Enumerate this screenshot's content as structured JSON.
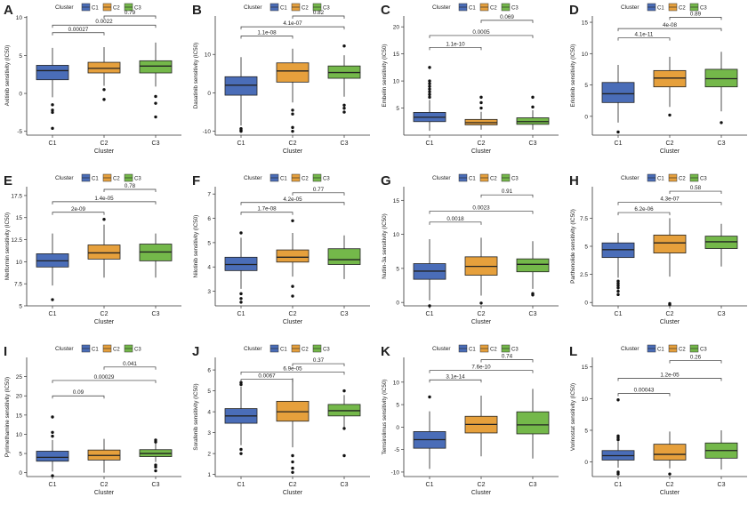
{
  "legend_common": {
    "title": "Cluster",
    "items": [
      "C1",
      "C2",
      "C3"
    ]
  },
  "colors": {
    "C1": "#4a6db8",
    "C2": "#e6a03c",
    "C3": "#74b84a",
    "axis": "#333333",
    "text": "#222222"
  },
  "chart_data": [
    {
      "type": "box",
      "panel": "A",
      "ylabel": "Axitinib sensitivity (IC50)",
      "xlabel": "Cluster",
      "categories": [
        "C1",
        "C2",
        "C3"
      ],
      "ylim": [
        -5.5,
        10.2
      ],
      "yticks": [
        -5,
        0,
        5,
        10
      ],
      "boxes": [
        {
          "q1": 1.8,
          "median": 3.0,
          "q3": 3.7,
          "min": -0.5,
          "max": 6.0,
          "outliers": [
            -1.5,
            -2.2,
            -2.5,
            -4.6
          ]
        },
        {
          "q1": 2.7,
          "median": 3.3,
          "q3": 4.1,
          "min": 1.0,
          "max": 6.1,
          "outliers": [
            0.5,
            -0.8
          ]
        },
        {
          "q1": 2.7,
          "median": 3.6,
          "q3": 4.3,
          "min": 0.9,
          "max": 6.7,
          "outliers": [
            -0.4,
            -1.3,
            -3.1
          ]
        }
      ],
      "comparisons": [
        {
          "pair": [
            "C1",
            "C2"
          ],
          "p": "0.00027",
          "y": 8.0
        },
        {
          "pair": [
            "C1",
            "C3"
          ],
          "p": "0.0022",
          "y": 9.0
        },
        {
          "pair": [
            "C2",
            "C3"
          ],
          "p": "0.79",
          "y": 10.2
        }
      ]
    },
    {
      "type": "box",
      "panel": "B",
      "ylabel": "Dasatinib sensitivity (IC50)",
      "xlabel": "Cluster",
      "categories": [
        "C1",
        "C2",
        "C3"
      ],
      "ylim": [
        -11,
        20
      ],
      "yticks": [
        -10,
        0,
        10
      ],
      "boxes": [
        {
          "q1": -0.6,
          "median": 2.0,
          "q3": 4.2,
          "min": -8.5,
          "max": 9.3,
          "outliers": [
            -9.3,
            -9.7,
            -10.0
          ]
        },
        {
          "q1": 2.8,
          "median": 5.7,
          "q3": 7.8,
          "min": -2.5,
          "max": 11.5,
          "outliers": [
            -4.5,
            -5.5,
            -9.0,
            -10.0
          ]
        },
        {
          "q1": 3.8,
          "median": 5.3,
          "q3": 7.0,
          "min": -1.0,
          "max": 9.8,
          "outliers": [
            12.2,
            -3.2,
            -4.0,
            -5.0
          ]
        }
      ],
      "comparisons": [
        {
          "pair": [
            "C1",
            "C2"
          ],
          "p": "1.1e-08",
          "y": 14.8
        },
        {
          "pair": [
            "C1",
            "C3"
          ],
          "p": "4.1e-07",
          "y": 17.2
        },
        {
          "pair": [
            "C2",
            "C3"
          ],
          "p": "0.82",
          "y": 20.0
        }
      ]
    },
    {
      "type": "box",
      "panel": "C",
      "ylabel": "Embelin sensitivity (IC50)",
      "xlabel": "Cluster",
      "categories": [
        "C1",
        "C2",
        "C3"
      ],
      "ylim": [
        0,
        22
      ],
      "yticks": [
        5,
        10,
        15,
        20
      ],
      "boxes": [
        {
          "q1": 2.5,
          "median": 3.3,
          "q3": 4.2,
          "min": 0.8,
          "max": 6.5,
          "outliers": [
            7.0,
            7.5,
            8.0,
            8.5,
            9.0,
            9.5,
            10.0,
            12.5
          ]
        },
        {
          "q1": 1.9,
          "median": 2.3,
          "q3": 2.9,
          "min": 1.0,
          "max": 4.3,
          "outliers": [
            5.0,
            6.0,
            7.0
          ]
        },
        {
          "q1": 2.0,
          "median": 2.5,
          "q3": 3.2,
          "min": 1.0,
          "max": 4.6,
          "outliers": [
            5.2,
            7.0
          ]
        }
      ],
      "comparisons": [
        {
          "pair": [
            "C1",
            "C2"
          ],
          "p": "1.1e-10",
          "y": 16.2
        },
        {
          "pair": [
            "C1",
            "C3"
          ],
          "p": "0.0005",
          "y": 18.4
        },
        {
          "pair": [
            "C2",
            "C3"
          ],
          "p": "0.069",
          "y": 21.2
        }
      ]
    },
    {
      "type": "box",
      "panel": "D",
      "ylabel": "Erlotinib sensitivity (IC50)",
      "xlabel": "Cluster",
      "categories": [
        "C1",
        "C2",
        "C3"
      ],
      "ylim": [
        -3,
        16
      ],
      "yticks": [
        0,
        5,
        10,
        15
      ],
      "boxes": [
        {
          "q1": 2.2,
          "median": 3.6,
          "q3": 5.4,
          "min": -1.0,
          "max": 8.2,
          "outliers": [
            -2.5
          ]
        },
        {
          "q1": 4.7,
          "median": 6.1,
          "q3": 7.3,
          "min": 1.5,
          "max": 9.5,
          "outliers": [
            0.2
          ]
        },
        {
          "q1": 4.7,
          "median": 6.0,
          "q3": 7.5,
          "min": 0.8,
          "max": 10.3,
          "outliers": [
            -1.0
          ]
        }
      ],
      "comparisons": [
        {
          "pair": [
            "C1",
            "C2"
          ],
          "p": "4.1e-11",
          "y": 12.5
        },
        {
          "pair": [
            "C1",
            "C3"
          ],
          "p": "4e-08",
          "y": 14.0
        },
        {
          "pair": [
            "C2",
            "C3"
          ],
          "p": "0.89",
          "y": 15.8
        }
      ]
    },
    {
      "type": "box",
      "panel": "E",
      "ylabel": "Metformin sensitivity (IC50)",
      "xlabel": "Cluster",
      "categories": [
        "C1",
        "C2",
        "C3"
      ],
      "ylim": [
        5,
        18.5
      ],
      "yticks": [
        5.0,
        7.5,
        10.0,
        12.5,
        15.0,
        17.5
      ],
      "boxes": [
        {
          "q1": 9.4,
          "median": 10.1,
          "q3": 10.9,
          "min": 7.3,
          "max": 13.2,
          "outliers": [
            5.7
          ]
        },
        {
          "q1": 10.3,
          "median": 11.0,
          "q3": 11.9,
          "min": 8.2,
          "max": 14.2,
          "outliers": [
            14.8
          ]
        },
        {
          "q1": 10.1,
          "median": 11.1,
          "q3": 12.0,
          "min": 8.2,
          "max": 13.2,
          "outliers": []
        }
      ],
      "comparisons": [
        {
          "pair": [
            "C1",
            "C2"
          ],
          "p": "2e-09",
          "y": 15.6
        },
        {
          "pair": [
            "C1",
            "C3"
          ],
          "p": "1.4e-05",
          "y": 16.8
        },
        {
          "pair": [
            "C2",
            "C3"
          ],
          "p": "0.78",
          "y": 18.2
        }
      ]
    },
    {
      "type": "box",
      "panel": "F",
      "ylabel": "Nilotinib sensitivity (IC50)",
      "xlabel": "Cluster",
      "categories": [
        "C1",
        "C2",
        "C3"
      ],
      "ylim": [
        2.4,
        7.3
      ],
      "yticks": [
        3,
        4,
        5,
        6,
        7
      ],
      "boxes": [
        {
          "q1": 3.85,
          "median": 4.1,
          "q3": 4.4,
          "min": 3.1,
          "max": 5.2,
          "outliers": [
            5.4,
            2.9,
            2.7,
            2.55
          ]
        },
        {
          "q1": 4.2,
          "median": 4.4,
          "q3": 4.7,
          "min": 3.6,
          "max": 5.4,
          "outliers": [
            5.9,
            3.2,
            2.8
          ]
        },
        {
          "q1": 4.1,
          "median": 4.3,
          "q3": 4.75,
          "min": 3.5,
          "max": 5.3,
          "outliers": []
        }
      ],
      "comparisons": [
        {
          "pair": [
            "C1",
            "C2"
          ],
          "p": "1.7e-08",
          "y": 6.25
        },
        {
          "pair": [
            "C1",
            "C3"
          ],
          "p": "4.2e-05",
          "y": 6.65
        },
        {
          "pair": [
            "C2",
            "C3"
          ],
          "p": "0.77",
          "y": 7.05
        }
      ]
    },
    {
      "type": "box",
      "panel": "G",
      "ylabel": "Nutlin-3a sensitivity (IC50)",
      "xlabel": "Cluster",
      "categories": [
        "C1",
        "C2",
        "C3"
      ],
      "ylim": [
        -0.5,
        17
      ],
      "yticks": [
        0,
        5,
        10,
        15
      ],
      "boxes": [
        {
          "q1": 3.4,
          "median": 4.6,
          "q3": 5.7,
          "min": 0.3,
          "max": 9.3,
          "outliers": [
            -0.5
          ]
        },
        {
          "q1": 4.0,
          "median": 5.3,
          "q3": 6.7,
          "min": 1.0,
          "max": 9.5,
          "outliers": [
            -0.1
          ]
        },
        {
          "q1": 4.5,
          "median": 5.6,
          "q3": 6.4,
          "min": 2.0,
          "max": 9.0,
          "outliers": [
            1.3,
            1.1
          ]
        }
      ],
      "comparisons": [
        {
          "pair": [
            "C1",
            "C2"
          ],
          "p": "0.0018",
          "y": 11.8
        },
        {
          "pair": [
            "C1",
            "C3"
          ],
          "p": "0.0023",
          "y": 13.4
        },
        {
          "pair": [
            "C2",
            "C3"
          ],
          "p": "0.91",
          "y": 15.8
        }
      ]
    },
    {
      "type": "box",
      "panel": "H",
      "ylabel": "Parthenolide sensitivity (IC50)",
      "xlabel": "Cluster",
      "categories": [
        "C1",
        "C2",
        "C3"
      ],
      "ylim": [
        -0.3,
        10.3
      ],
      "yticks": [
        0.0,
        2.5,
        5.0,
        7.5
      ],
      "boxes": [
        {
          "q1": 4.0,
          "median": 4.7,
          "q3": 5.3,
          "min": 2.2,
          "max": 6.2,
          "outliers": [
            1.9,
            1.7,
            1.5,
            1.3,
            1.0,
            0.7
          ]
        },
        {
          "q1": 4.4,
          "median": 5.3,
          "q3": 6.0,
          "min": 2.3,
          "max": 7.5,
          "outliers": [
            -0.1,
            -0.2
          ]
        },
        {
          "q1": 4.8,
          "median": 5.4,
          "q3": 5.9,
          "min": 3.2,
          "max": 7.0,
          "outliers": []
        }
      ],
      "comparisons": [
        {
          "pair": [
            "C1",
            "C2"
          ],
          "p": "6.2e-06",
          "y": 8.0
        },
        {
          "pair": [
            "C1",
            "C3"
          ],
          "p": "4.3e-07",
          "y": 8.9
        },
        {
          "pair": [
            "C2",
            "C3"
          ],
          "p": "0.58",
          "y": 9.9
        }
      ]
    },
    {
      "type": "box",
      "panel": "I",
      "ylabel": "Pyrimethamine sensitivity (IC50)",
      "xlabel": "Cluster",
      "categories": [
        "C1",
        "C2",
        "C3"
      ],
      "ylim": [
        -1,
        30
      ],
      "yticks": [
        0,
        5,
        10,
        15,
        20,
        25
      ],
      "boxes": [
        {
          "q1": 3.0,
          "median": 4.0,
          "q3": 5.6,
          "min": 0.3,
          "max": 8.5,
          "outliers": [
            10.5,
            9.5,
            14.5,
            -0.8
          ]
        },
        {
          "q1": 3.3,
          "median": 4.5,
          "q3": 5.9,
          "min": 0.0,
          "max": 8.8,
          "outliers": []
        },
        {
          "q1": 4.2,
          "median": 5.0,
          "q3": 6.0,
          "min": 2.8,
          "max": 7.7,
          "outliers": [
            8.0,
            8.5,
            2.0,
            1.5,
            0.5
          ]
        }
      ],
      "comparisons": [
        {
          "pair": [
            "C1",
            "C2"
          ],
          "p": "0.09",
          "y": 20.0
        },
        {
          "pair": [
            "C1",
            "C3"
          ],
          "p": "0.00029",
          "y": 24.0
        },
        {
          "pair": [
            "C2",
            "C3"
          ],
          "p": "0.041",
          "y": 27.5
        }
      ]
    },
    {
      "type": "box",
      "panel": "J",
      "ylabel": "Sorafenib sensitivity (IC50)",
      "xlabel": "Cluster",
      "categories": [
        "C1",
        "C2",
        "C3"
      ],
      "ylim": [
        0.9,
        6.6
      ],
      "yticks": [
        1,
        2,
        3,
        4,
        5,
        6
      ],
      "boxes": [
        {
          "q1": 3.45,
          "median": 3.8,
          "q3": 4.15,
          "min": 2.4,
          "max": 5.2,
          "outliers": [
            5.3,
            5.4,
            2.2,
            2.0
          ]
        },
        {
          "q1": 3.55,
          "median": 4.0,
          "q3": 4.5,
          "min": 2.3,
          "max": 5.6,
          "outliers": [
            1.9,
            1.6,
            1.3,
            1.1
          ]
        },
        {
          "q1": 3.8,
          "median": 4.05,
          "q3": 4.35,
          "min": 3.2,
          "max": 4.8,
          "outliers": [
            5.0,
            3.2,
            1.9
          ]
        }
      ],
      "comparisons": [
        {
          "pair": [
            "C1",
            "C2"
          ],
          "p": "0.0067",
          "y": 5.55
        },
        {
          "pair": [
            "C1",
            "C3"
          ],
          "p": "6.9e-05",
          "y": 5.9
        },
        {
          "pair": [
            "C2",
            "C3"
          ],
          "p": "0.37",
          "y": 6.3
        }
      ]
    },
    {
      "type": "box",
      "panel": "K",
      "ylabel": "Temsirolimus sensitivity (IC50)",
      "xlabel": "Cluster",
      "categories": [
        "C1",
        "C2",
        "C3"
      ],
      "ylim": [
        -11,
        15.5
      ],
      "yticks": [
        -10,
        -5,
        0,
        5,
        10
      ],
      "boxes": [
        {
          "q1": -4.7,
          "median": -2.8,
          "q3": -1.0,
          "min": -9.3,
          "max": 3.5,
          "outliers": [
            6.7
          ]
        },
        {
          "q1": -1.3,
          "median": 0.6,
          "q3": 2.4,
          "min": -6.5,
          "max": 7.0,
          "outliers": []
        },
        {
          "q1": -1.5,
          "median": 0.5,
          "q3": 3.4,
          "min": -7.0,
          "max": 8.5,
          "outliers": []
        }
      ],
      "comparisons": [
        {
          "pair": [
            "C1",
            "C2"
          ],
          "p": "3.1e-14",
          "y": 10.5
        },
        {
          "pair": [
            "C1",
            "C3"
          ],
          "p": "7.6e-10",
          "y": 12.6
        },
        {
          "pair": [
            "C2",
            "C3"
          ],
          "p": "0.74",
          "y": 15.0
        }
      ]
    },
    {
      "type": "box",
      "panel": "L",
      "ylabel": "Vorinostat sensitivity (IC50)",
      "xlabel": "Cluster",
      "categories": [
        "C1",
        "C2",
        "C3"
      ],
      "ylim": [
        -2.3,
        16.5
      ],
      "yticks": [
        0,
        5,
        10,
        15
      ],
      "boxes": [
        {
          "q1": 0.3,
          "median": 1.0,
          "q3": 1.8,
          "min": -0.9,
          "max": 3.2,
          "outliers": [
            3.5,
            3.8,
            4.1,
            -1.6,
            -1.9,
            9.8
          ]
        },
        {
          "q1": 0.3,
          "median": 1.2,
          "q3": 2.8,
          "min": -1.0,
          "max": 4.8,
          "outliers": [
            -1.9
          ]
        },
        {
          "q1": 0.6,
          "median": 1.8,
          "q3": 3.0,
          "min": -1.2,
          "max": 5.0,
          "outliers": []
        }
      ],
      "comparisons": [
        {
          "pair": [
            "C1",
            "C2"
          ],
          "p": "0.00043",
          "y": 10.8
        },
        {
          "pair": [
            "C1",
            "C3"
          ],
          "p": "1.2e-05",
          "y": 13.2
        },
        {
          "pair": [
            "C2",
            "C3"
          ],
          "p": "0.26",
          "y": 16.0
        }
      ]
    }
  ]
}
